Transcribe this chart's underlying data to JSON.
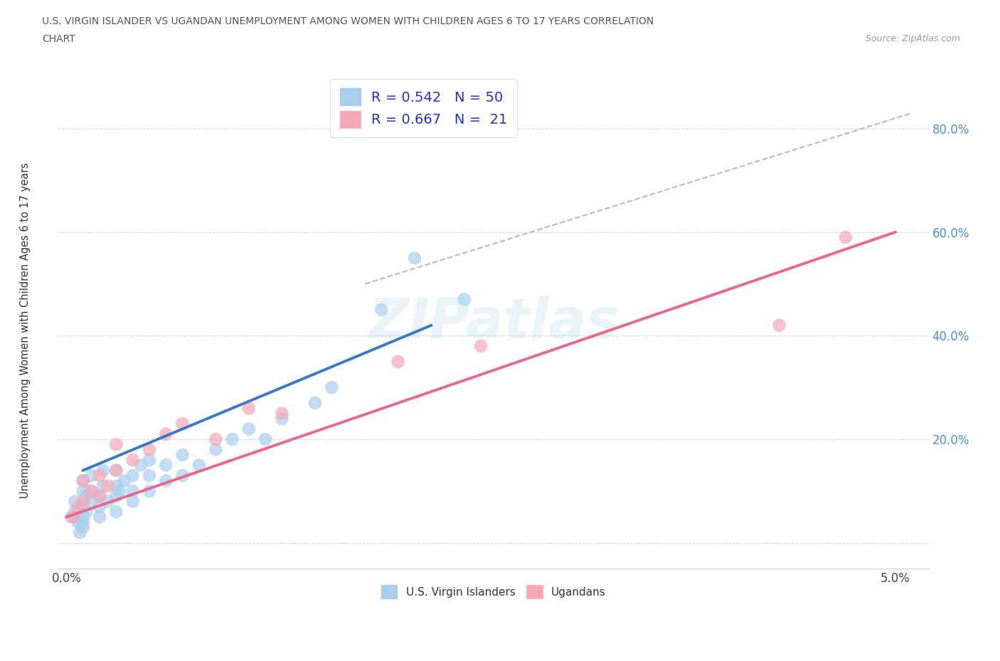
{
  "title_line1": "U.S. VIRGIN ISLANDER VS UGANDAN UNEMPLOYMENT AMONG WOMEN WITH CHILDREN AGES 6 TO 17 YEARS CORRELATION",
  "title_line2": "CHART",
  "source": "Source: ZipAtlas.com",
  "ylabel": "Unemployment Among Women with Children Ages 6 to 17 years",
  "xlim": [
    -0.0005,
    0.052
  ],
  "ylim": [
    -0.05,
    0.9
  ],
  "ytick_values": [
    0.0,
    0.2,
    0.4,
    0.6,
    0.8
  ],
  "ytick_labels": [
    "",
    "20.0%",
    "40.0%",
    "60.0%",
    "80.0%"
  ],
  "xtick_values": [
    0.0,
    0.01,
    0.02,
    0.03,
    0.04,
    0.05
  ],
  "xtick_labels": [
    "0.0%",
    "",
    "",
    "",
    "",
    "5.0%"
  ],
  "watermark": "ZIPatlas",
  "blue_dot_color": "#A8CFEE",
  "pink_dot_color": "#F4A7B5",
  "blue_line_color": "#3A78C9",
  "pink_line_color": "#E8698A",
  "dashed_color": "#BBBBBB",
  "legend_blue_label": "R = 0.542   N = 50",
  "legend_pink_label": "R = 0.667   N =  21",
  "bottom_blue_label": "U.S. Virgin Islanders",
  "bottom_pink_label": "Ugandans",
  "ytick_color": "#4A90D9",
  "blue_scatter_x": [
    0.0003,
    0.0005,
    0.0005,
    0.0007,
    0.001,
    0.001,
    0.001,
    0.001,
    0.0012,
    0.0012,
    0.0015,
    0.0015,
    0.0015,
    0.002,
    0.002,
    0.002,
    0.0022,
    0.0022,
    0.0025,
    0.003,
    0.003,
    0.003,
    0.003,
    0.0032,
    0.0035,
    0.004,
    0.004,
    0.004,
    0.0045,
    0.005,
    0.005,
    0.005,
    0.006,
    0.006,
    0.007,
    0.007,
    0.008,
    0.009,
    0.01,
    0.011,
    0.012,
    0.013,
    0.015,
    0.016,
    0.019,
    0.021,
    0.024,
    0.001,
    0.001,
    0.0008
  ],
  "blue_scatter_y": [
    0.05,
    0.06,
    0.08,
    0.04,
    0.05,
    0.07,
    0.1,
    0.12,
    0.09,
    0.06,
    0.08,
    0.1,
    0.13,
    0.05,
    0.07,
    0.09,
    0.11,
    0.14,
    0.08,
    0.06,
    0.09,
    0.11,
    0.14,
    0.1,
    0.12,
    0.08,
    0.1,
    0.13,
    0.15,
    0.1,
    0.13,
    0.16,
    0.12,
    0.15,
    0.13,
    0.17,
    0.15,
    0.18,
    0.2,
    0.22,
    0.2,
    0.24,
    0.27,
    0.3,
    0.45,
    0.55,
    0.47,
    0.03,
    0.04,
    0.02
  ],
  "pink_scatter_x": [
    0.0004,
    0.0007,
    0.001,
    0.001,
    0.0015,
    0.002,
    0.002,
    0.0025,
    0.003,
    0.003,
    0.004,
    0.005,
    0.006,
    0.007,
    0.009,
    0.011,
    0.013,
    0.02,
    0.025,
    0.043,
    0.047
  ],
  "pink_scatter_y": [
    0.05,
    0.07,
    0.08,
    0.12,
    0.1,
    0.09,
    0.13,
    0.11,
    0.14,
    0.19,
    0.16,
    0.18,
    0.21,
    0.23,
    0.2,
    0.26,
    0.25,
    0.35,
    0.38,
    0.42,
    0.59
  ],
  "blue_trend_x": [
    0.001,
    0.022
  ],
  "blue_trend_y": [
    0.14,
    0.42
  ],
  "pink_trend_x": [
    0.0,
    0.05
  ],
  "pink_trend_y": [
    0.05,
    0.6
  ],
  "dashed_trend_x": [
    0.018,
    0.051
  ],
  "dashed_trend_y": [
    0.5,
    0.83
  ]
}
